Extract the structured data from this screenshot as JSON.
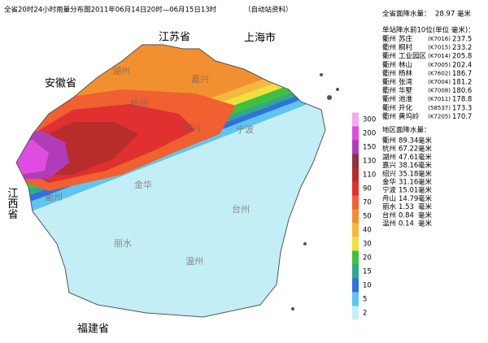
{
  "title": "全省20时24小时雨量分布图2011年06月14日20时—06月15日13时",
  "source_note": "（自动站资料）",
  "province_total": {
    "label": "全省面降水量：",
    "value": "28.97",
    "unit": "毫米"
  },
  "top_stations": {
    "heading": "单站降水前10位(单位 毫米)：",
    "rows": [
      [
        "衢州",
        "苏庄",
        "(K7016)",
        "237.5"
      ],
      [
        "衢州",
        "桐村",
        "(K7015)",
        "233.2"
      ],
      [
        "衢州",
        "工业园区",
        "(K7014)",
        "205.8"
      ],
      [
        "衢州",
        "林山",
        "(K7005)",
        "202.4"
      ],
      [
        "衢州",
        "杨林",
        "(K7602)",
        "186.7"
      ],
      [
        "衢州",
        "张湾",
        "(K7004)",
        "181.2"
      ],
      [
        "衢州",
        "华墅",
        "(K7008)",
        "180.6"
      ],
      [
        "衢州",
        "池淮",
        "(K7011)",
        "178.8"
      ],
      [
        "衢州",
        "开化",
        "(58537)",
        "173.3"
      ],
      [
        "衢州",
        "黄坞岭",
        "(K7205)",
        "170.7"
      ]
    ]
  },
  "region_totals": {
    "heading": "地区面降水量：",
    "rows": [
      [
        "衢州",
        "89.34",
        "毫米"
      ],
      [
        "杭州",
        "67.22",
        "毫米"
      ],
      [
        "湖州",
        "47.61",
        "毫米"
      ],
      [
        "嘉兴",
        "38.16",
        "毫米"
      ],
      [
        "绍兴",
        "35.18",
        "毫米"
      ],
      [
        "金华",
        "31.16",
        "毫米"
      ],
      [
        "宁波",
        "15.01",
        "毫米"
      ],
      [
        "舟山",
        "14.79",
        "毫米"
      ],
      [
        "丽水",
        "1.53",
        "毫米"
      ],
      [
        "台州",
        "0.84",
        "毫米"
      ],
      [
        "温州",
        "0.14",
        "毫米"
      ]
    ]
  },
  "legend": [
    {
      "label": "300",
      "color": "#f2a8ee"
    },
    {
      "label": "200",
      "color": "#e04ce0"
    },
    {
      "label": "150",
      "color": "#b03cb8"
    },
    {
      "label": "130",
      "color": "#903040"
    },
    {
      "label": "110",
      "color": "#b82c2c"
    },
    {
      "label": "90",
      "color": "#e03030"
    },
    {
      "label": "70",
      "color": "#f06030"
    },
    {
      "label": "50",
      "color": "#f29030"
    },
    {
      "label": "40",
      "color": "#f4b840"
    },
    {
      "label": "30",
      "color": "#eee040"
    },
    {
      "label": "20",
      "color": "#40c040"
    },
    {
      "label": "15",
      "color": "#30a890"
    },
    {
      "label": "10",
      "color": "#3070e0"
    },
    {
      "label": "5",
      "color": "#60c4f0"
    },
    {
      "label": "2",
      "color": "#c4eef6"
    }
  ],
  "provinces": [
    {
      "label": "江苏省"
    },
    {
      "label": "上海市"
    },
    {
      "label": "安徽省"
    },
    {
      "label": "江西省"
    },
    {
      "label": "福建省"
    }
  ],
  "cities": [
    {
      "label": "湖州"
    },
    {
      "label": "嘉兴"
    },
    {
      "label": "杭州"
    },
    {
      "label": "绍兴"
    },
    {
      "label": "宁波"
    },
    {
      "label": "衢州"
    },
    {
      "label": "金华"
    },
    {
      "label": "台州"
    },
    {
      "label": "丽水"
    },
    {
      "label": "温州"
    }
  ]
}
